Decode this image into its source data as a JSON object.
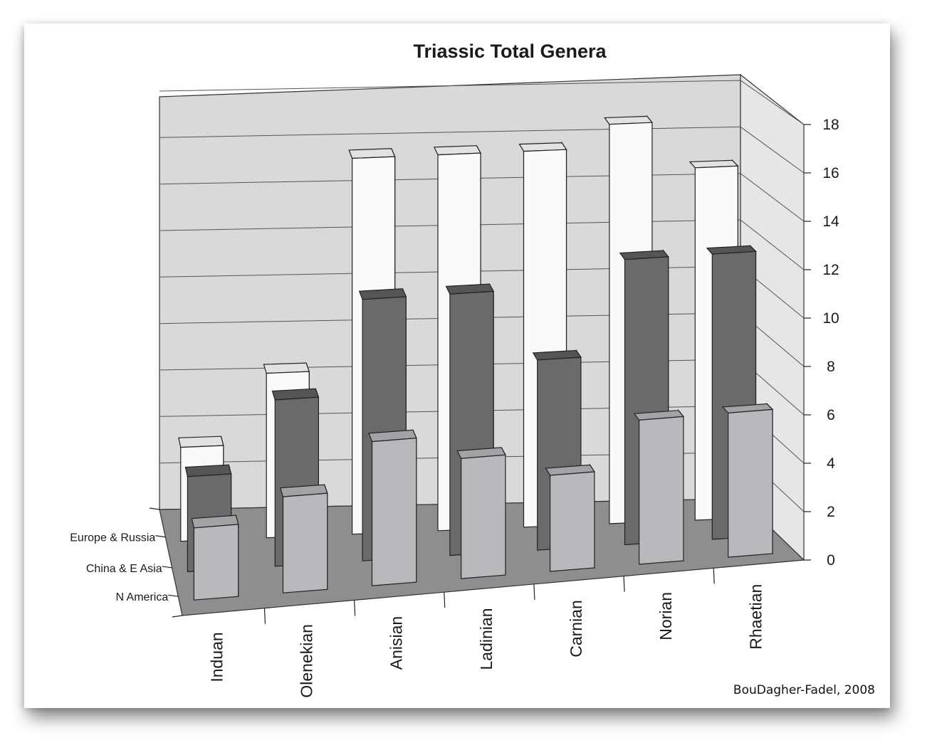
{
  "chart_data": {
    "type": "bar",
    "title": "Triassic Total Genera",
    "categories": [
      "Induan",
      "Olenekian",
      "Anisian",
      "Ladinian",
      "Carnian",
      "Norian",
      "Rhaetian"
    ],
    "series": [
      {
        "name": "Europe & Russia",
        "values": [
          4,
          7,
          16,
          16,
          16,
          17,
          15
        ]
      },
      {
        "name": "China & E Asia",
        "values": [
          4,
          7,
          11,
          11,
          8,
          12,
          12
        ]
      },
      {
        "name": "N America",
        "values": [
          3,
          4,
          6,
          5,
          4,
          6,
          6
        ]
      }
    ],
    "yticks": [
      "0",
      "2",
      "4",
      "6",
      "8",
      "10",
      "12",
      "14",
      "16",
      "18"
    ],
    "ylim": [
      0,
      18
    ],
    "grid": true,
    "source": "BouDagher-Fadel, 2008",
    "colors": {
      "Europe & Russia": "#fafafa",
      "China & E Asia": "#6a6a6a",
      "N America": "#b8b9bd",
      "wall": "#d9d9d9",
      "floor": "#8e8e8e"
    }
  }
}
